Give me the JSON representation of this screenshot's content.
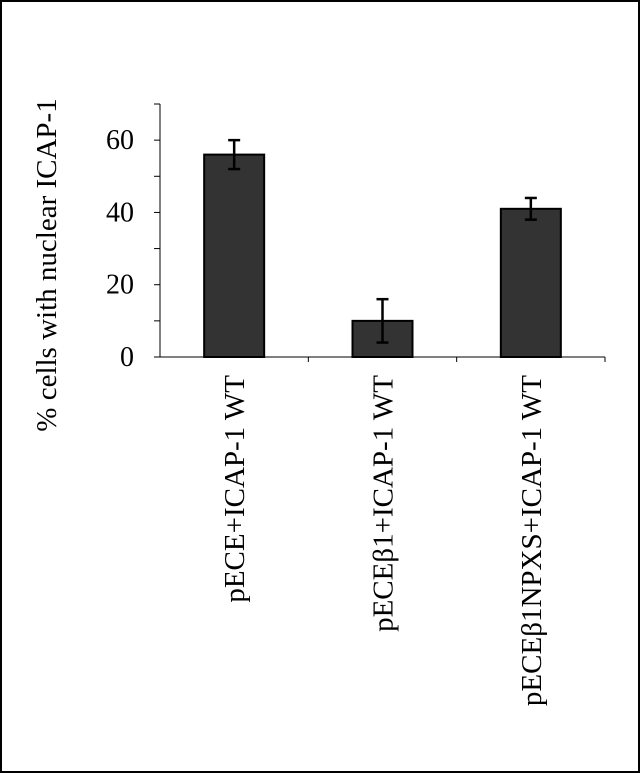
{
  "chart_data": {
    "type": "bar",
    "categories": [
      "pECE+ICAP-1 WT",
      "pECEβ1+ICAP-1 WT",
      "pECEβ1NPXS+ICAP-1 WT"
    ],
    "values": [
      56,
      10,
      41
    ],
    "errors": [
      4,
      6,
      3
    ],
    "ylabel": "% cells with nuclear ICAP-1",
    "xlabel": "",
    "ylim": [
      0,
      70
    ],
    "yticks": [
      0,
      20,
      40,
      60
    ],
    "yticks_minor": [
      10,
      30,
      50,
      70
    ],
    "bar_color": "#333333",
    "grid": false
  }
}
